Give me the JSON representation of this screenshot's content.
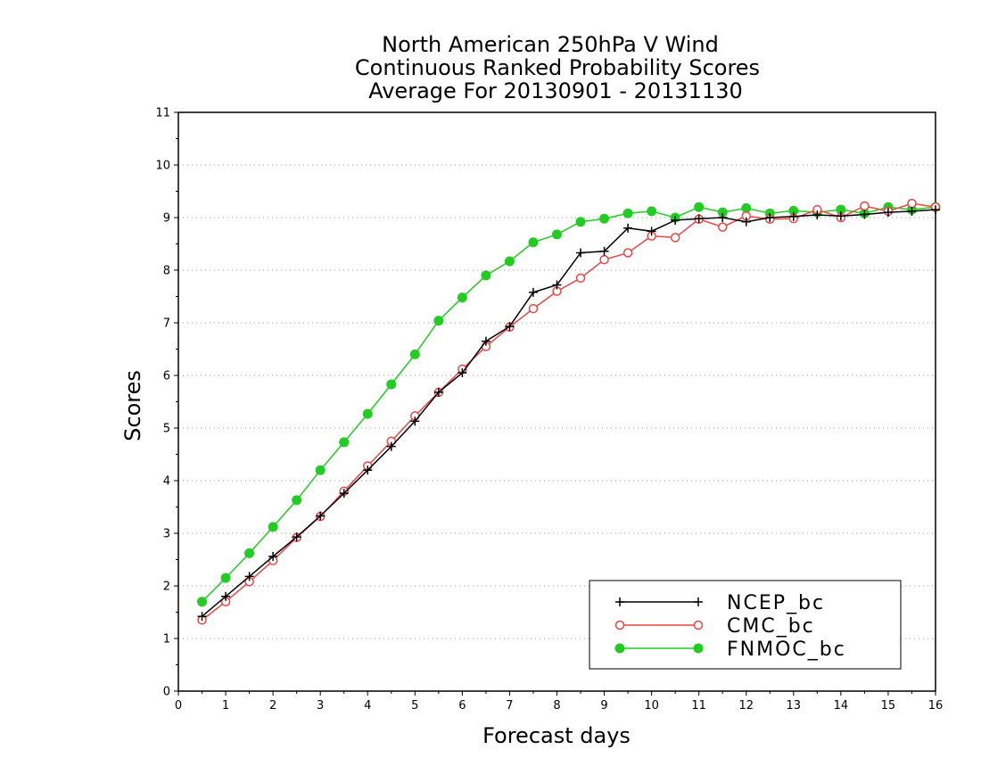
{
  "chart_data": {
    "type": "line",
    "title_lines": [
      "North American 250hPa V Wind",
      "Continuous Ranked Probability Scores",
      "Average For 20130901 - 20131130"
    ],
    "xlabel": "Forecast days",
    "ylabel": "Scores",
    "xlim": [
      0,
      16
    ],
    "ylim": [
      0,
      11
    ],
    "xticks": [
      0,
      1,
      2,
      3,
      4,
      5,
      6,
      7,
      8,
      9,
      10,
      11,
      12,
      13,
      14,
      15,
      16
    ],
    "yticks": [
      0,
      1,
      2,
      3,
      4,
      5,
      6,
      7,
      8,
      9,
      10,
      11
    ],
    "grid": "horizontal dotted",
    "legend_position": "bottom-right",
    "x": [
      0.5,
      1,
      1.5,
      2,
      2.5,
      3,
      3.5,
      4,
      4.5,
      5,
      5.5,
      6,
      6.5,
      7,
      7.5,
      8,
      8.5,
      9,
      9.5,
      10,
      10.5,
      11,
      11.5,
      12,
      12.5,
      13,
      13.5,
      14,
      14.5,
      15,
      15.5,
      16
    ],
    "series": [
      {
        "name": "NCEP_bc",
        "color": "#000000",
        "marker": "plus",
        "values": [
          1.42,
          1.8,
          2.18,
          2.56,
          2.93,
          3.33,
          3.76,
          4.2,
          4.65,
          5.13,
          5.68,
          6.05,
          6.65,
          6.93,
          7.58,
          7.72,
          8.33,
          8.36,
          8.8,
          8.74,
          8.95,
          8.98,
          9.0,
          8.92,
          9.0,
          9.02,
          9.05,
          9.03,
          9.06,
          9.1,
          9.12,
          9.15
        ]
      },
      {
        "name": "CMC_bc",
        "color": "#ee4444",
        "marker": "open-circle",
        "values": [
          1.35,
          1.7,
          2.08,
          2.48,
          2.92,
          3.32,
          3.8,
          4.28,
          4.75,
          5.23,
          5.68,
          6.12,
          6.55,
          6.92,
          7.27,
          7.6,
          7.85,
          8.2,
          8.33,
          8.65,
          8.62,
          8.97,
          8.82,
          9.03,
          8.97,
          8.98,
          9.15,
          9.0,
          9.22,
          9.12,
          9.27,
          9.2
        ]
      },
      {
        "name": "FNMOC_bc",
        "color": "#22cc22",
        "marker": "filled-circle",
        "values": [
          1.7,
          2.15,
          2.62,
          3.12,
          3.63,
          4.2,
          4.73,
          5.27,
          5.83,
          6.4,
          7.04,
          7.48,
          7.9,
          8.17,
          8.53,
          8.68,
          8.92,
          8.98,
          9.08,
          9.12,
          9.0,
          9.2,
          9.1,
          9.18,
          9.08,
          9.13,
          9.1,
          9.15,
          9.08,
          9.2,
          9.15,
          9.2
        ]
      }
    ]
  }
}
